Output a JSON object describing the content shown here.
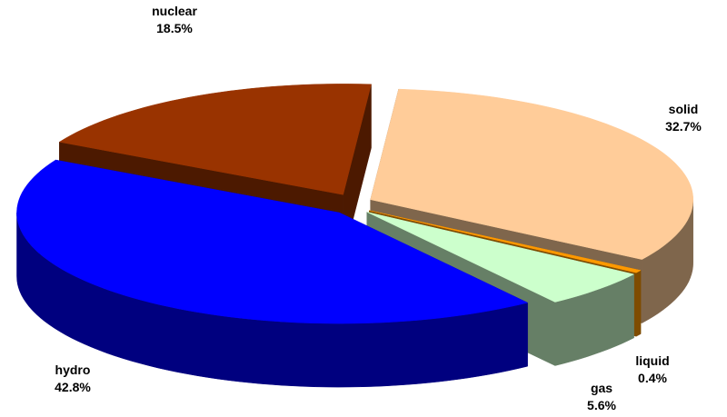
{
  "chart_data": {
    "type": "pie",
    "categories": [
      "solid",
      "liquid",
      "gas",
      "hydro",
      "nuclear"
    ],
    "values": [
      32.7,
      0.4,
      5.6,
      42.8,
      18.5
    ],
    "value_labels": [
      "32.7%",
      "0.4%",
      "5.6%",
      "42.8%",
      "18.5%"
    ],
    "colors": [
      "#ffcc99",
      "#ff9900",
      "#ccffcc",
      "#0000ff",
      "#993300"
    ]
  }
}
